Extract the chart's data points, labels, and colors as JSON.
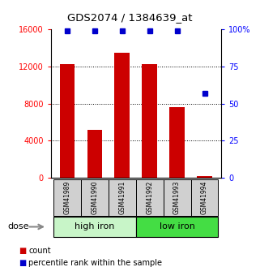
{
  "title": "GDS2074 / 1384639_at",
  "samples": [
    "GSM41989",
    "GSM41990",
    "GSM41991",
    "GSM41992",
    "GSM41993",
    "GSM41994"
  ],
  "counts": [
    12300,
    5200,
    13500,
    12300,
    7600,
    200
  ],
  "percentiles": [
    99,
    99,
    99,
    99,
    99,
    57
  ],
  "groups": [
    {
      "label": "high iron",
      "indices": [
        0,
        1,
        2
      ],
      "color": "#c8f5c8"
    },
    {
      "label": "low iron",
      "indices": [
        3,
        4,
        5
      ],
      "color": "#44dd44"
    }
  ],
  "bar_color": "#cc0000",
  "dot_color": "#0000cc",
  "left_ylim": [
    0,
    16000
  ],
  "right_ylim": [
    0,
    100
  ],
  "left_yticks": [
    0,
    4000,
    8000,
    12000,
    16000
  ],
  "right_yticks": [
    0,
    25,
    50,
    75,
    100
  ],
  "right_yticklabels": [
    "0",
    "25",
    "50",
    "75",
    "100%"
  ],
  "grid_values": [
    4000,
    8000,
    12000
  ],
  "sample_box_color": "#d0d0d0",
  "dose_label": "dose"
}
